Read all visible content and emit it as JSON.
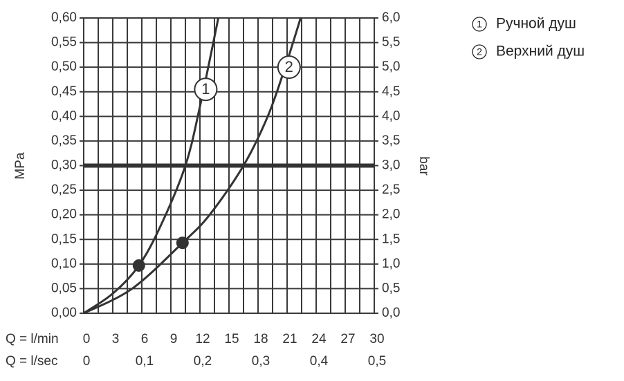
{
  "chart_data": {
    "type": "line",
    "y_label": "MPa",
    "y2_label": "bar",
    "x_label": "Q = l/min",
    "x2_label": "Q = l/sec",
    "xlim": [
      0,
      30
    ],
    "xticks": [
      0,
      3,
      6,
      9,
      12,
      15,
      18,
      21,
      24,
      27,
      30
    ],
    "x2lim": [
      0,
      0.5
    ],
    "x2ticks": [
      0,
      {
        "value": 0.1,
        "label": "0,1"
      },
      {
        "value": 0.2,
        "label": "0,2"
      },
      {
        "value": 0.3,
        "label": "0,3"
      },
      {
        "value": 0.4,
        "label": "0,4"
      },
      {
        "value": 0.5,
        "label": "0,5"
      }
    ],
    "ylim": [
      0,
      0.6
    ],
    "yticks": [
      {
        "value": 0,
        "label": "0,00"
      },
      {
        "value": 0.05,
        "label": "0,05"
      },
      {
        "value": 0.1,
        "label": "0,10"
      },
      {
        "value": 0.15,
        "label": "0,15"
      },
      {
        "value": 0.2,
        "label": "0,20"
      },
      {
        "value": 0.25,
        "label": "0,25"
      },
      {
        "value": 0.3,
        "label": "0,30"
      },
      {
        "value": 0.35,
        "label": "0,35"
      },
      {
        "value": 0.4,
        "label": "0,40"
      },
      {
        "value": 0.45,
        "label": "0,45"
      },
      {
        "value": 0.5,
        "label": "0,50"
      },
      {
        "value": 0.55,
        "label": "0,55"
      },
      {
        "value": 0.6,
        "label": "0,60"
      }
    ],
    "y2lim": [
      0,
      6
    ],
    "y2ticks": [
      {
        "value": 0,
        "label": "0,0"
      },
      {
        "value": 0.5,
        "label": "0,5"
      },
      {
        "value": 1,
        "label": "1,0"
      },
      {
        "value": 1.5,
        "label": "1,5"
      },
      {
        "value": 2,
        "label": "2,0"
      },
      {
        "value": 2.5,
        "label": "2,5"
      },
      {
        "value": 3,
        "label": "3,0"
      },
      {
        "value": 3.5,
        "label": "3,5"
      },
      {
        "value": 4,
        "label": "4,0"
      },
      {
        "value": 4.5,
        "label": "4,5"
      },
      {
        "value": 5,
        "label": "5,0"
      },
      {
        "value": 5.5,
        "label": "5,5"
      },
      {
        "value": 6,
        "label": "6,0"
      }
    ],
    "grid": true,
    "reference_line": 0.3,
    "series": [
      {
        "name": "Ручной душ",
        "label": "1",
        "color": "#333333",
        "x": [
          0,
          3,
          5.7,
          8,
          10.5,
          12,
          13.9
        ],
        "values": [
          0,
          0.04,
          0.097,
          0.18,
          0.3,
          0.42,
          0.6
        ],
        "point": {
          "x": 5.7,
          "value": 0.097
        },
        "drop_x": 10.5,
        "label_at": {
          "x": 12.6,
          "value": 0.455
        }
      },
      {
        "name": "Верхний душ",
        "label": "2",
        "color": "#333333",
        "x": [
          0,
          5,
          10.2,
          13,
          16.5,
          19,
          20.8,
          22.4
        ],
        "values": [
          0,
          0.05,
          0.143,
          0.2,
          0.3,
          0.4,
          0.5,
          0.6
        ],
        "point": {
          "x": 10.2,
          "value": 0.143
        },
        "drop_x": 16.5,
        "label_at": {
          "x": 21.2,
          "value": 0.5
        }
      }
    ]
  }
}
